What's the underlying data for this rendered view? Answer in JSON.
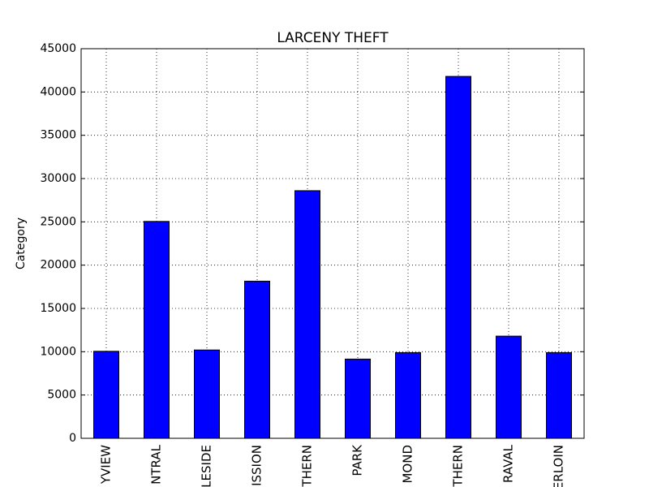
{
  "chart_data": {
    "type": "bar",
    "title": "LARCENY THEFT",
    "y_label": "Category",
    "categories": [
      "YVIEW",
      "NTRAL",
      "LESIDE",
      "ISSION",
      "THERN",
      "PARK",
      "MOND",
      "THERN",
      "RAVAL",
      "ERLOIN"
    ],
    "values": [
      10050,
      25050,
      10200,
      18150,
      28600,
      9150,
      9900,
      41800,
      11800,
      9900
    ],
    "color": "#0000ff",
    "ylim": [
      0,
      45000
    ],
    "yticks": [
      0,
      5000,
      10000,
      15000,
      20000,
      25000,
      30000,
      35000,
      40000,
      45000
    ],
    "grid": true
  }
}
